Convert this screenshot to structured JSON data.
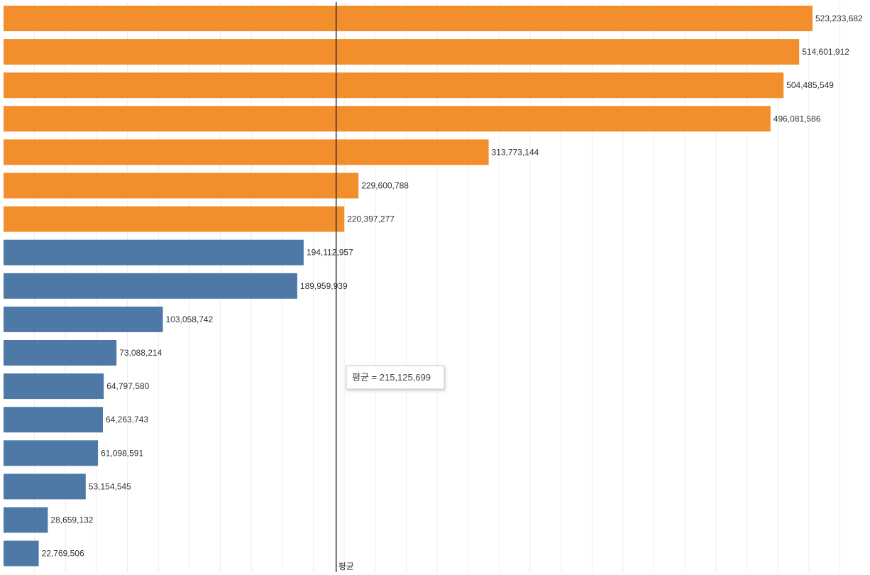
{
  "chart_data": {
    "type": "bar",
    "orientation": "horizontal",
    "values": [
      523233682,
      514601912,
      504485549,
      496081586,
      313773144,
      229600788,
      220397277,
      194112957,
      189959939,
      103058742,
      73088214,
      64797580,
      64263743,
      61098591,
      53154545,
      28659132,
      22769506
    ],
    "value_labels": [
      "523,233,682",
      "514,601,912",
      "504,485,549",
      "496,081,586",
      "313,773,144",
      "229,600,788",
      "220,397,277",
      "194,112,957",
      "189,959,939",
      "103,058,742",
      "73,088,214",
      "64,797,580",
      "64,263,743",
      "61,098,591",
      "53,154,545",
      "28,659,132",
      "22,769,506"
    ],
    "highlight_count": 7,
    "colors": {
      "above_average": "#F28E2B",
      "below_average": "#4E79A7",
      "reference_line": "#333333",
      "grid": "#EDEDED"
    },
    "reference_line": {
      "value": 215125699,
      "label": "평균",
      "tooltip": "평균 = 215,125,699"
    },
    "xlim": [
      0,
      560000000
    ],
    "grid": true
  }
}
